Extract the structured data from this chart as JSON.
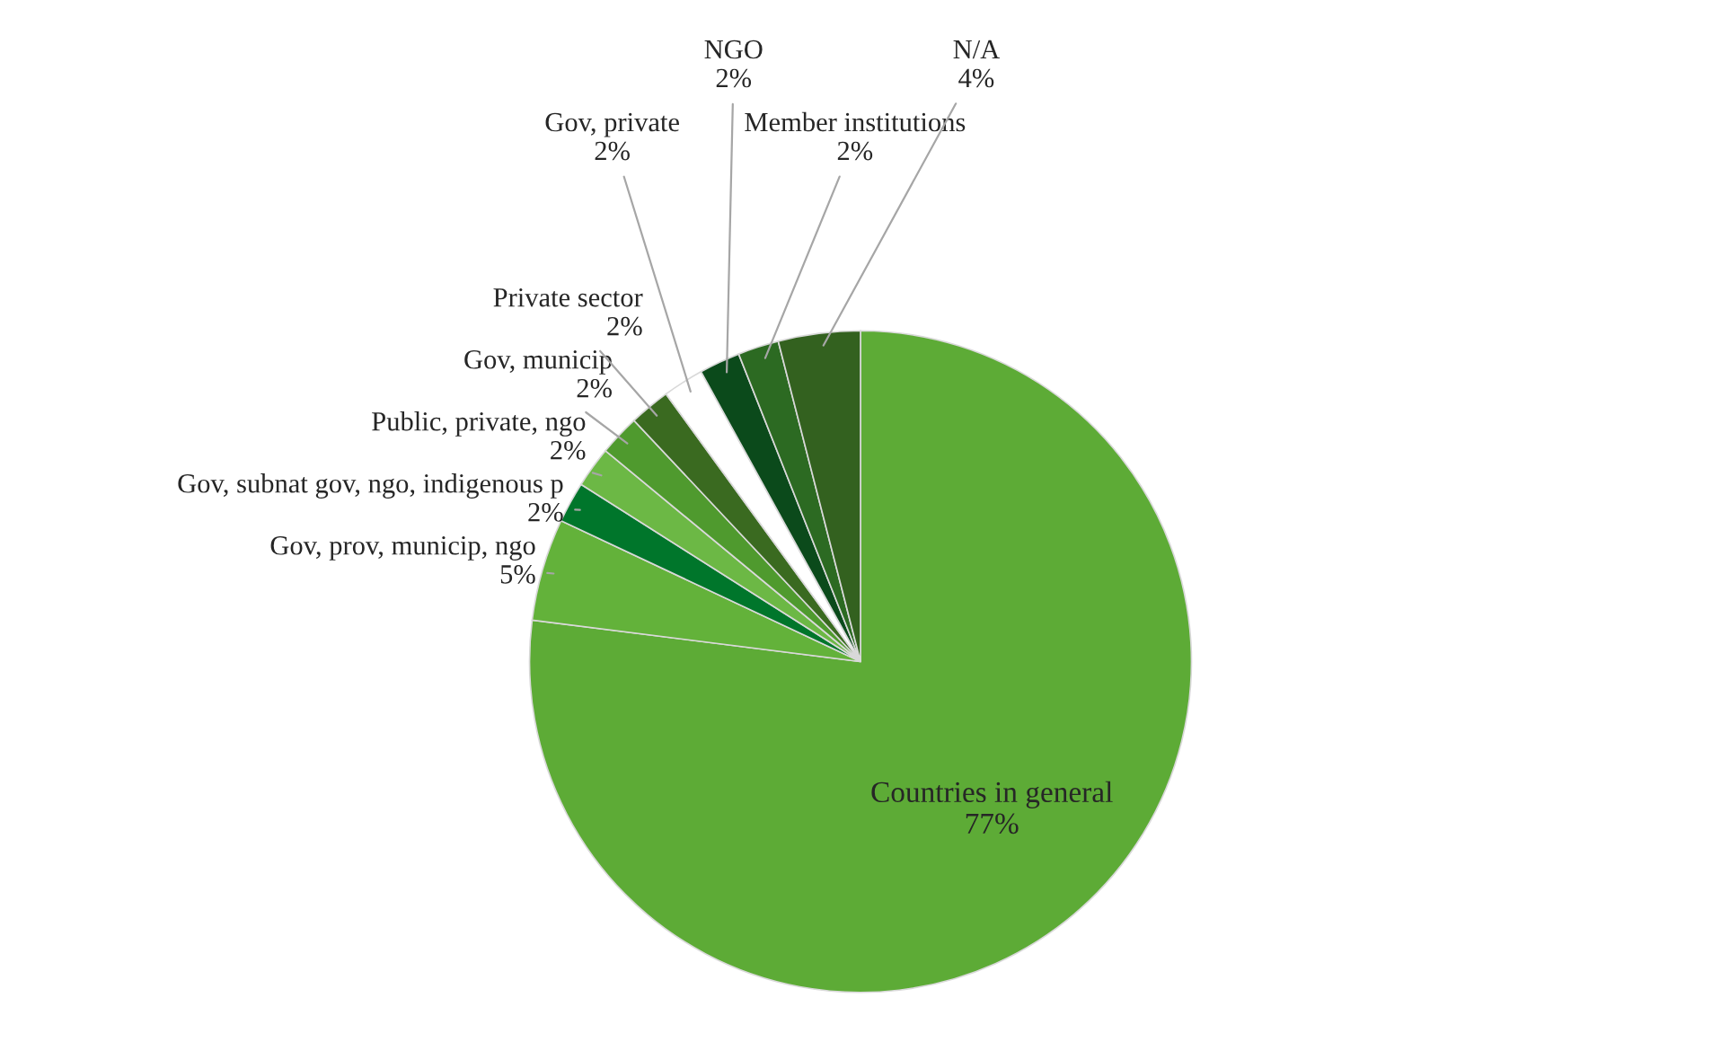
{
  "chart_data": {
    "type": "pie",
    "categories": [
      "Countries in general",
      "Gov, prov, municip, ngo",
      "Gov, subnat gov, ngo, indigenous p",
      "Public, private, ngo",
      "Gov, municip",
      "Private sector",
      "Gov, private",
      "NGO",
      "Member institutions",
      "N/A"
    ],
    "values": [
      77,
      5,
      2,
      2,
      2,
      2,
      2,
      2,
      2,
      4
    ],
    "colors": [
      "#5dab36",
      "#63b23a",
      "#00762b",
      "#6cb845",
      "#4f9a2e",
      "#3a6a20",
      "#ffffff",
      "#0b4a1b",
      "#2c6a22",
      "#33611f"
    ],
    "value_labels": [
      "77%",
      "5%",
      "2%",
      "2%",
      "2%",
      "2%",
      "2%",
      "2%",
      "2%",
      "4%"
    ]
  }
}
